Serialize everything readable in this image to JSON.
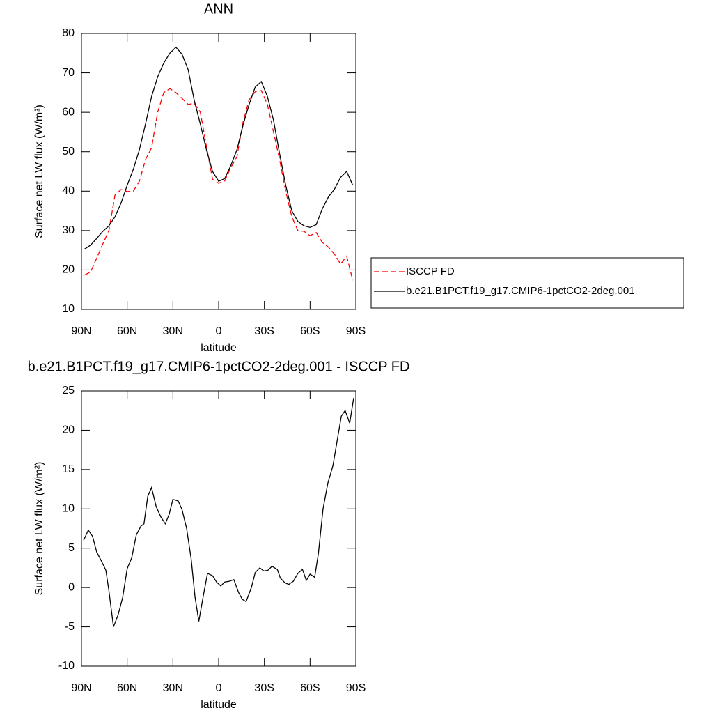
{
  "chart_data": [
    {
      "type": "line",
      "title": "ANN",
      "x_label": "latitude",
      "y_label": "Surface net LW flux (W/m²)",
      "x": [
        88,
        84,
        80,
        76,
        72,
        68,
        64,
        60,
        56,
        52,
        48,
        44,
        40,
        36,
        32,
        28,
        24,
        20,
        16,
        12,
        8,
        4,
        0,
        -4,
        -8,
        -12,
        -16,
        -20,
        -24,
        -28,
        -32,
        -36,
        -40,
        -44,
        -48,
        -52,
        -56,
        -60,
        -64,
        -68,
        -72,
        -76,
        -80,
        -84,
        -88
      ],
      "series": [
        {
          "name": "ISCCP FD",
          "color": "#ff0000",
          "linestyle": "dashed",
          "values": [
            18.7,
            19.5,
            23,
            26.6,
            30,
            39,
            40.4,
            39.9,
            40,
            42.5,
            48,
            51,
            60,
            65,
            66,
            65,
            63.5,
            62,
            62.3,
            60,
            51.4,
            43,
            42,
            42.6,
            46,
            48.7,
            57.5,
            63.2,
            65.2,
            65.5,
            62,
            55,
            48,
            40,
            33.5,
            30,
            29.8,
            28.7,
            29.5,
            27,
            25.8,
            24,
            21.5,
            23.5,
            17.4
          ]
        },
        {
          "name": "b.e21.B1PCT.f19_g17.CMIP6-1pctCO2-2deg.001",
          "color": "#000000",
          "linestyle": "solid",
          "values": [
            25.3,
            26.3,
            28,
            29.8,
            31.2,
            33.5,
            37,
            41.5,
            45.5,
            50.5,
            57,
            64,
            69,
            72.5,
            75,
            76.5,
            74.7,
            70.8,
            63,
            57,
            50.5,
            45,
            42.5,
            43.2,
            46.5,
            50.5,
            56.7,
            62,
            66.4,
            67.8,
            64,
            58,
            49.5,
            41.5,
            35,
            32.3,
            31.2,
            30.8,
            31.5,
            35.5,
            38.5,
            40.5,
            43.5,
            45,
            41.5
          ]
        }
      ],
      "xlim": [
        90,
        -90
      ],
      "xticks": [
        {
          "value": 90,
          "label": "90N"
        },
        {
          "value": 60,
          "label": "60N"
        },
        {
          "value": 30,
          "label": "30N"
        },
        0,
        {
          "value": -30,
          "label": "30S"
        },
        {
          "value": -60,
          "label": "60S"
        },
        {
          "value": -90,
          "label": "90S"
        }
      ],
      "ylim": [
        10,
        80
      ],
      "yticks": [
        10,
        20,
        30,
        40,
        50,
        60,
        70,
        80
      ],
      "legend": "right"
    },
    {
      "type": "line",
      "title": "b.e21.B1PCT.f19_g17.CMIP6-1pctCO2-2deg.001 - ISCCP FD",
      "x_label": "latitude",
      "y_label": "Surface net LW flux (W/m²)",
      "x": [
        88.6,
        85.5,
        82.7,
        80,
        77,
        74,
        72,
        69,
        66,
        63,
        60,
        57,
        54,
        51,
        49,
        46.5,
        44,
        41,
        38,
        35,
        32.5,
        30,
        26.5,
        24,
        21,
        18,
        15.5,
        13,
        10,
        7.3,
        4,
        1.4,
        -1.4,
        -4,
        -7,
        -10,
        -13,
        -15.5,
        -18,
        -21.5,
        -24,
        -27,
        -29.7,
        -32.4,
        -35,
        -38.5,
        -40.5,
        -43.5,
        -46,
        -49,
        -52,
        -55,
        -57.5,
        -60,
        -63,
        -65.5,
        -68.5,
        -71.7,
        -75,
        -77.7,
        -80.5,
        -83,
        -86,
        -88.6
      ],
      "series": [
        {
          "color": "#000000",
          "linestyle": "solid",
          "values": [
            6,
            7.3,
            6.5,
            4.5,
            3.4,
            2.2,
            -0.4,
            -5,
            -3.5,
            -1.3,
            2.4,
            3.8,
            6.7,
            7.8,
            8.1,
            11.6,
            12.7,
            10.3,
            9,
            8.1,
            9.3,
            11.2,
            11,
            9.9,
            7.5,
            3.6,
            -1.2,
            -4.3,
            -1,
            1.8,
            1.5,
            0.7,
            0.2,
            0.7,
            0.8,
            1,
            -0.6,
            -1.5,
            -1.8,
            0,
            1.9,
            2.5,
            2.1,
            2.2,
            2.7,
            2.3,
            1.2,
            0.6,
            0.4,
            0.8,
            1.8,
            2.3,
            0.9,
            1.7,
            1.3,
            4.4,
            10,
            13.3,
            15.5,
            18.6,
            21.8,
            22.5,
            20.9,
            24.1
          ]
        }
      ],
      "xlim": [
        90,
        -90
      ],
      "xticks": [
        {
          "value": 90,
          "label": "90N"
        },
        {
          "value": 60,
          "label": "60N"
        },
        {
          "value": 30,
          "label": "30N"
        },
        0,
        {
          "value": -30,
          "label": "30S"
        },
        {
          "value": -60,
          "label": "60S"
        },
        {
          "value": -90,
          "label": "90S"
        }
      ],
      "ylim": [
        -10,
        25
      ],
      "yticks": [
        -10,
        -5,
        0,
        5,
        10,
        15,
        20,
        25
      ]
    }
  ]
}
